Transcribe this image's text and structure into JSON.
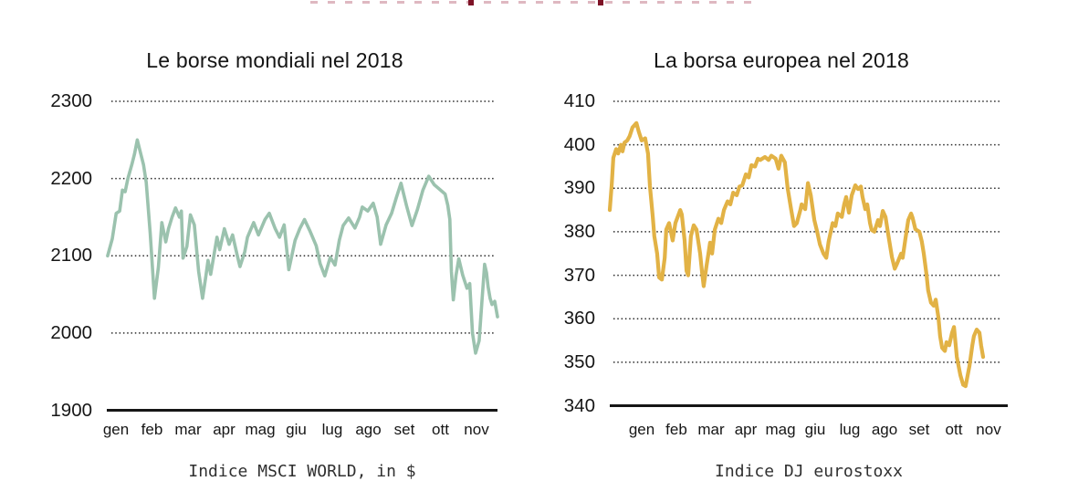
{
  "page": {
    "background": "#ffffff",
    "cropped_heading": {
      "note": "only bottom edge of a dark-red heading is visible at the very top",
      "color_dark": "#7e1226",
      "color_light": "#d9abb6"
    }
  },
  "chart_data": [
    {
      "type": "line",
      "title": "Le borse mondiali nel 2018",
      "caption": "Indice MSCI WORLD, in $",
      "series_name": "Indice MSCI World in $",
      "line_color": "#9bc2ae",
      "line_width": 3.6,
      "ylim": [
        1900,
        2300
      ],
      "y_ticks": [
        2300,
        2200,
        2100,
        2000,
        1900
      ],
      "x_tick_labels": [
        "gen",
        "feb",
        "mar",
        "apr",
        "mag",
        "giu",
        "lug",
        "ago",
        "set",
        "ott",
        "nov"
      ],
      "grid": "dotted horizontal, solid baseline axis",
      "legend": "none",
      "points": [
        [
          0.002,
          2100
        ],
        [
          0.014,
          2122
        ],
        [
          0.024,
          2155
        ],
        [
          0.033,
          2158
        ],
        [
          0.04,
          2185
        ],
        [
          0.047,
          2183
        ],
        [
          0.054,
          2200
        ],
        [
          0.064,
          2218
        ],
        [
          0.071,
          2232
        ],
        [
          0.078,
          2250
        ],
        [
          0.087,
          2232
        ],
        [
          0.094,
          2218
        ],
        [
          0.101,
          2195
        ],
        [
          0.111,
          2130
        ],
        [
          0.122,
          2045
        ],
        [
          0.132,
          2085
        ],
        [
          0.141,
          2143
        ],
        [
          0.151,
          2118
        ],
        [
          0.158,
          2135
        ],
        [
          0.167,
          2150
        ],
        [
          0.176,
          2162
        ],
        [
          0.186,
          2150
        ],
        [
          0.191,
          2158
        ],
        [
          0.195,
          2097
        ],
        [
          0.205,
          2112
        ],
        [
          0.214,
          2153
        ],
        [
          0.224,
          2140
        ],
        [
          0.235,
          2080
        ],
        [
          0.245,
          2045
        ],
        [
          0.254,
          2075
        ],
        [
          0.259,
          2094
        ],
        [
          0.266,
          2076
        ],
        [
          0.282,
          2124
        ],
        [
          0.289,
          2108
        ],
        [
          0.301,
          2135
        ],
        [
          0.313,
          2115
        ],
        [
          0.322,
          2127
        ],
        [
          0.334,
          2100
        ],
        [
          0.341,
          2086
        ],
        [
          0.353,
          2105
        ],
        [
          0.36,
          2124
        ],
        [
          0.376,
          2143
        ],
        [
          0.388,
          2127
        ],
        [
          0.405,
          2147
        ],
        [
          0.416,
          2155
        ],
        [
          0.431,
          2135
        ],
        [
          0.442,
          2124
        ],
        [
          0.454,
          2140
        ],
        [
          0.466,
          2082
        ],
        [
          0.482,
          2120
        ],
        [
          0.494,
          2135
        ],
        [
          0.506,
          2147
        ],
        [
          0.52,
          2132
        ],
        [
          0.536,
          2113
        ],
        [
          0.546,
          2090
        ],
        [
          0.558,
          2074
        ],
        [
          0.572,
          2098
        ],
        [
          0.584,
          2088
        ],
        [
          0.595,
          2120
        ],
        [
          0.605,
          2139
        ],
        [
          0.619,
          2149
        ],
        [
          0.635,
          2136
        ],
        [
          0.647,
          2150
        ],
        [
          0.654,
          2163
        ],
        [
          0.668,
          2158
        ],
        [
          0.682,
          2168
        ],
        [
          0.692,
          2150
        ],
        [
          0.701,
          2115
        ],
        [
          0.715,
          2140
        ],
        [
          0.729,
          2155
        ],
        [
          0.741,
          2175
        ],
        [
          0.753,
          2194
        ],
        [
          0.767,
          2165
        ],
        [
          0.781,
          2139
        ],
        [
          0.795,
          2160
        ],
        [
          0.809,
          2185
        ],
        [
          0.824,
          2203
        ],
        [
          0.838,
          2192
        ],
        [
          0.852,
          2186
        ],
        [
          0.866,
          2180
        ],
        [
          0.873,
          2165
        ],
        [
          0.878,
          2147
        ],
        [
          0.882,
          2080
        ],
        [
          0.887,
          2043
        ],
        [
          0.894,
          2075
        ],
        [
          0.901,
          2096
        ],
        [
          0.911,
          2075
        ],
        [
          0.922,
          2058
        ],
        [
          0.929,
          2064
        ],
        [
          0.936,
          2000
        ],
        [
          0.944,
          1974
        ],
        [
          0.953,
          1990
        ],
        [
          0.96,
          2040
        ],
        [
          0.967,
          2089
        ],
        [
          0.972,
          2078
        ],
        [
          0.976,
          2060
        ],
        [
          0.981,
          2045
        ],
        [
          0.986,
          2037
        ],
        [
          0.993,
          2041
        ],
        [
          1.0,
          2021
        ]
      ]
    },
    {
      "type": "line",
      "title": "La borsa europea nel 2018",
      "caption": "Indice DJ eurostoxx",
      "series_name": "Indice DJ eurostoxx",
      "line_color": "#e2b245",
      "line_width": 4.2,
      "ylim": [
        340,
        410
      ],
      "y_ticks": [
        410,
        400,
        390,
        380,
        370,
        360,
        350,
        340
      ],
      "x_tick_labels": [
        "gen",
        "feb",
        "mar",
        "apr",
        "mag",
        "giu",
        "lug",
        "ago",
        "set",
        "ott",
        "nov"
      ],
      "grid": "dotted horizontal, solid baseline axis",
      "legend": "none",
      "points": [
        [
          0.0,
          385
        ],
        [
          0.005,
          391
        ],
        [
          0.009,
          397
        ],
        [
          0.016,
          399
        ],
        [
          0.021,
          398
        ],
        [
          0.028,
          400
        ],
        [
          0.032,
          398.5
        ],
        [
          0.037,
          400.5
        ],
        [
          0.044,
          401
        ],
        [
          0.05,
          402
        ],
        [
          0.057,
          404
        ],
        [
          0.067,
          405
        ],
        [
          0.073,
          403
        ],
        [
          0.08,
          401
        ],
        [
          0.089,
          401.5
        ],
        [
          0.096,
          398
        ],
        [
          0.101,
          390.5
        ],
        [
          0.108,
          383.5
        ],
        [
          0.112,
          379
        ],
        [
          0.119,
          375
        ],
        [
          0.124,
          369.5
        ],
        [
          0.131,
          369
        ],
        [
          0.138,
          374
        ],
        [
          0.142,
          380.5
        ],
        [
          0.149,
          382
        ],
        [
          0.158,
          378
        ],
        [
          0.165,
          382
        ],
        [
          0.177,
          385
        ],
        [
          0.181,
          384
        ],
        [
          0.188,
          378
        ],
        [
          0.193,
          371
        ],
        [
          0.197,
          370
        ],
        [
          0.204,
          379
        ],
        [
          0.211,
          381.5
        ],
        [
          0.218,
          380.5
        ],
        [
          0.227,
          375
        ],
        [
          0.232,
          370.5
        ],
        [
          0.236,
          367.5
        ],
        [
          0.243,
          372
        ],
        [
          0.248,
          375
        ],
        [
          0.252,
          377.5
        ],
        [
          0.257,
          375
        ],
        [
          0.264,
          380.5
        ],
        [
          0.273,
          383
        ],
        [
          0.28,
          382
        ],
        [
          0.287,
          385
        ],
        [
          0.296,
          387
        ],
        [
          0.303,
          386.3
        ],
        [
          0.31,
          389
        ],
        [
          0.319,
          388.4
        ],
        [
          0.326,
          390.4
        ],
        [
          0.333,
          390.7
        ],
        [
          0.342,
          393.2
        ],
        [
          0.349,
          392.5
        ],
        [
          0.356,
          395.3
        ],
        [
          0.365,
          395
        ],
        [
          0.372,
          396.8
        ],
        [
          0.378,
          396.5
        ],
        [
          0.39,
          397.2
        ],
        [
          0.399,
          396.5
        ],
        [
          0.406,
          397.5
        ],
        [
          0.417,
          396.8
        ],
        [
          0.424,
          394.5
        ],
        [
          0.431,
          397.5
        ],
        [
          0.44,
          396
        ],
        [
          0.447,
          390
        ],
        [
          0.456,
          385
        ],
        [
          0.463,
          381.3
        ],
        [
          0.47,
          382
        ],
        [
          0.479,
          385
        ],
        [
          0.482,
          386.3
        ],
        [
          0.491,
          385.2
        ],
        [
          0.498,
          391.2
        ],
        [
          0.505,
          388.4
        ],
        [
          0.514,
          382.7
        ],
        [
          0.521,
          380
        ],
        [
          0.528,
          377.1
        ],
        [
          0.537,
          375
        ],
        [
          0.544,
          374
        ],
        [
          0.55,
          377.8
        ],
        [
          0.56,
          382
        ],
        [
          0.567,
          381.3
        ],
        [
          0.573,
          384.2
        ],
        [
          0.583,
          383.4
        ],
        [
          0.589,
          386.3
        ],
        [
          0.594,
          388
        ],
        [
          0.601,
          384.4
        ],
        [
          0.608,
          388.4
        ],
        [
          0.617,
          390.7
        ],
        [
          0.624,
          389.8
        ],
        [
          0.631,
          390.4
        ],
        [
          0.635,
          388
        ],
        [
          0.642,
          385.2
        ],
        [
          0.647,
          386.3
        ],
        [
          0.654,
          382
        ],
        [
          0.658,
          380.4
        ],
        [
          0.665,
          380
        ],
        [
          0.674,
          382.7
        ],
        [
          0.679,
          381.3
        ],
        [
          0.686,
          384.8
        ],
        [
          0.693,
          383.4
        ],
        [
          0.7,
          379.2
        ],
        [
          0.709,
          374.2
        ],
        [
          0.716,
          371.5
        ],
        [
          0.722,
          372.7
        ],
        [
          0.732,
          375
        ],
        [
          0.736,
          374
        ],
        [
          0.743,
          378.4
        ],
        [
          0.75,
          382.7
        ],
        [
          0.757,
          384.2
        ],
        [
          0.761,
          383.2
        ],
        [
          0.768,
          380.6
        ],
        [
          0.778,
          380
        ],
        [
          0.784,
          377.8
        ],
        [
          0.789,
          375
        ],
        [
          0.796,
          370
        ],
        [
          0.8,
          366.5
        ],
        [
          0.807,
          363.7
        ],
        [
          0.814,
          363
        ],
        [
          0.819,
          364.4
        ],
        [
          0.826,
          360.2
        ],
        [
          0.83,
          356
        ],
        [
          0.835,
          353.3
        ],
        [
          0.842,
          352.6
        ],
        [
          0.846,
          354.6
        ],
        [
          0.853,
          353.9
        ],
        [
          0.86,
          356.8
        ],
        [
          0.865,
          358.1
        ],
        [
          0.872,
          351.2
        ],
        [
          0.881,
          347
        ],
        [
          0.888,
          344.8
        ],
        [
          0.894,
          344.5
        ],
        [
          0.904,
          349.2
        ],
        [
          0.911,
          353.9
        ],
        [
          0.915,
          356
        ],
        [
          0.922,
          357.5
        ],
        [
          0.929,
          356.8
        ],
        [
          0.933,
          353.9
        ],
        [
          0.938,
          351.2
        ]
      ]
    }
  ]
}
